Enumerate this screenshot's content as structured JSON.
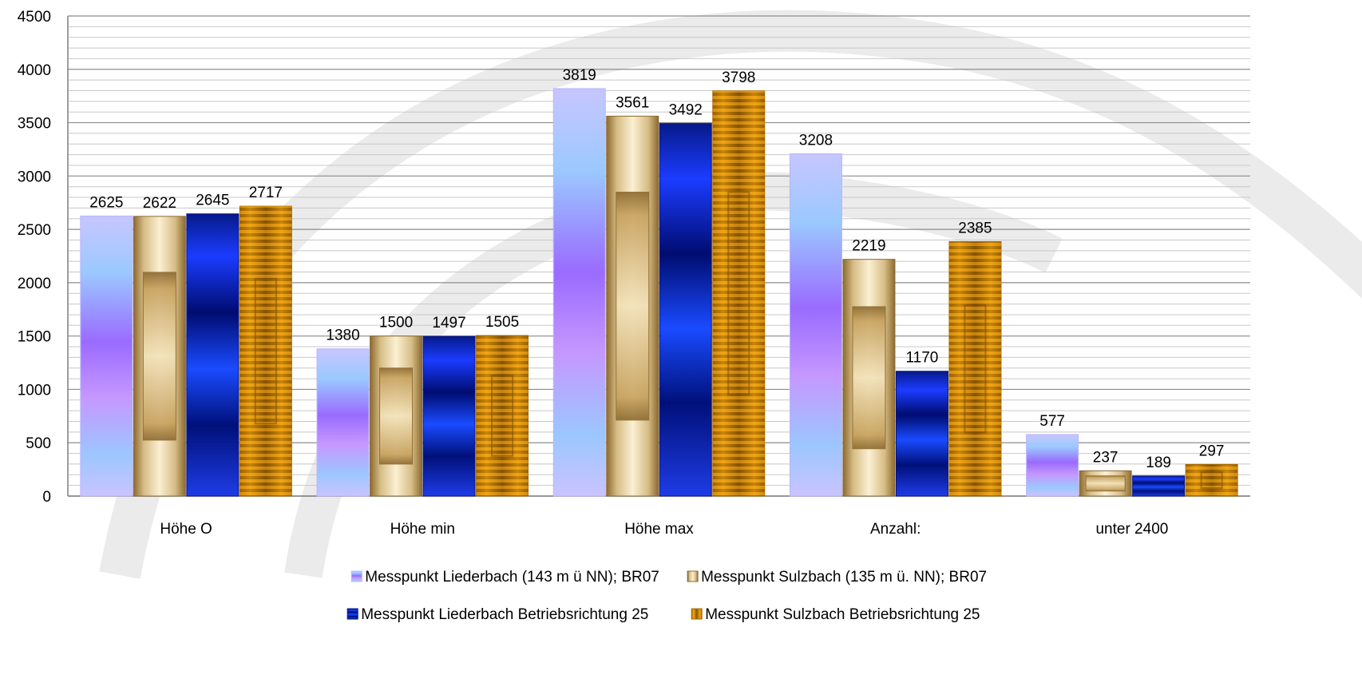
{
  "chart_data": {
    "type": "bar",
    "categories": [
      "Höhe O",
      "Höhe min",
      "Höhe max",
      "Anzahl:",
      "unter 2400"
    ],
    "series": [
      {
        "name": "Messpunkt Liederbach (143 m ü NN); BR07",
        "values": [
          2625,
          1380,
          3819,
          3208,
          577
        ]
      },
      {
        "name": "Messpunkt Sulzbach (135 m ü. NN); BR07",
        "values": [
          2622,
          1500,
          3561,
          2219,
          237
        ]
      },
      {
        "name": "Messpunkt Liederbach Betriebsrichtung 25",
        "values": [
          2645,
          1497,
          3492,
          1170,
          189
        ]
      },
      {
        "name": "Messpunkt Sulzbach Betriebsrichtung 25",
        "values": [
          2717,
          1505,
          3798,
          2385,
          297
        ]
      }
    ],
    "data_labels": [
      [
        "2625",
        "1380",
        "3819",
        "3208",
        "577"
      ],
      [
        "2622",
        "1500",
        "3561",
        "2219",
        "237"
      ],
      [
        "2645",
        "1497",
        "3492",
        "1170",
        "189"
      ],
      [
        "2717",
        "1505",
        "3798",
        "2385",
        "297"
      ]
    ],
    "y_ticks": [
      0,
      500,
      1000,
      1500,
      2000,
      2500,
      3000,
      3500,
      4000,
      4500
    ],
    "ylim": [
      0,
      4500
    ],
    "minor_grid_step": 100,
    "grid": true,
    "legend_position": "bottom",
    "title": "",
    "xlabel": "",
    "ylabel": "",
    "colors": {
      "series_1": "#a98bff",
      "series_2": "#c8a86a",
      "series_3": "#0a1ec8",
      "series_4": "#e09a10",
      "grid": "#8c8c8c",
      "axis": "#7f7f7f",
      "watermark": "#e4e4e4"
    }
  }
}
